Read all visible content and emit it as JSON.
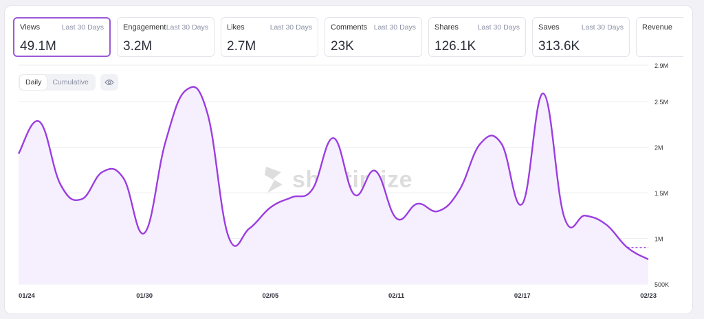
{
  "cards": [
    {
      "label": "Views",
      "period": "Last 30 Days",
      "value": "49.1M",
      "active": true
    },
    {
      "label": "Engagement",
      "period": "Last 30 Days",
      "value": "3.2M"
    },
    {
      "label": "Likes",
      "period": "Last 30 Days",
      "value": "2.7M"
    },
    {
      "label": "Comments",
      "period": "Last 30 Days",
      "value": "23K"
    },
    {
      "label": "Shares",
      "period": "Last 30 Days",
      "value": "126.1K"
    },
    {
      "label": "Saves",
      "period": "Last 30 Days",
      "value": "313.6K"
    },
    {
      "label": "Revenue",
      "period": "",
      "value": ""
    }
  ],
  "toggle": {
    "daily": "Daily",
    "cumulative": "Cumulative"
  },
  "watermark": "shortimize",
  "colors": {
    "accent": "#9b3de0",
    "fill": "#f6effd",
    "grid": "#ececf1"
  },
  "icons": {
    "visibility": "eye-icon",
    "watermark_logo": "shortimize-logo-icon"
  },
  "chart_data": {
    "type": "line",
    "y_tick_labels": [
      "500K",
      "1M",
      "1.5M",
      "2M",
      "2.5M",
      "2.9M"
    ],
    "y_ticks": [
      500000,
      1000000,
      1500000,
      2000000,
      2500000,
      2900000
    ],
    "ylim": [
      500000,
      2900000
    ],
    "x_tick_labels": [
      "01/24",
      "01/30",
      "02/05",
      "02/11",
      "02/17",
      "02/23"
    ],
    "grid": true,
    "series": [
      {
        "x": [
          "01/24",
          "01/25",
          "01/26",
          "01/27",
          "01/28",
          "01/29",
          "01/30",
          "01/31",
          "02/01",
          "02/02",
          "02/03",
          "02/04",
          "02/05",
          "02/06",
          "02/07",
          "02/08",
          "02/09",
          "02/10",
          "02/11",
          "02/12",
          "02/13",
          "02/14",
          "02/15",
          "02/16",
          "02/17",
          "02/18",
          "02/19",
          "02/20",
          "02/21",
          "02/22",
          "02/23"
        ],
        "values": [
          1930000,
          2280000,
          1590000,
          1430000,
          1730000,
          1660000,
          1060000,
          2060000,
          2630000,
          2370000,
          1020000,
          1110000,
          1340000,
          1450000,
          1540000,
          2100000,
          1480000,
          1740000,
          1220000,
          1380000,
          1300000,
          1530000,
          2040000,
          2040000,
          1380000,
          2590000,
          1230000,
          1250000,
          1150000,
          900000,
          770000
        ]
      }
    ],
    "last_value_dashed": true
  }
}
